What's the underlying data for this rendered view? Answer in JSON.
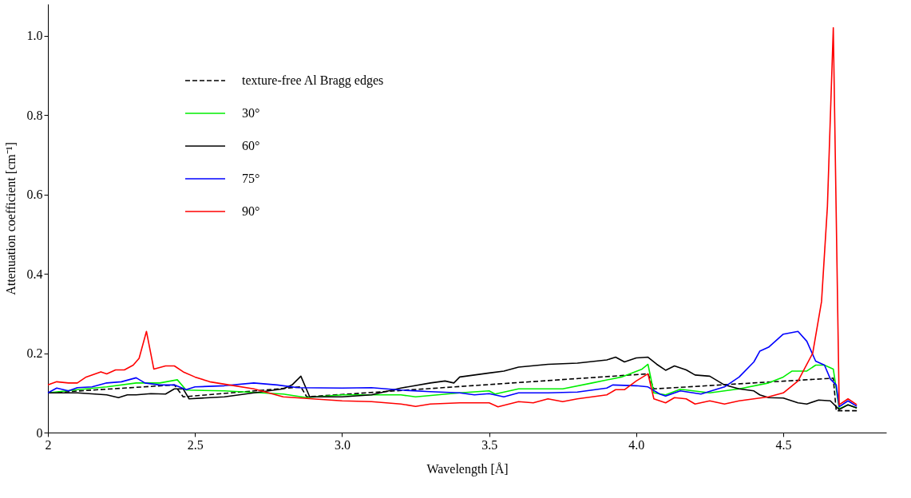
{
  "chart_data": {
    "type": "line",
    "xlabel": "Wavelength  [Å]",
    "ylabel": "Attenuation coefficient  [cm⁻¹]",
    "xlim": [
      2,
      4.85
    ],
    "ylim": [
      0,
      1.08
    ],
    "xticks": [
      2,
      2.5,
      {
        "value": 3,
        "label": "3.0"
      },
      3.5,
      {
        "value": 4,
        "label": "4.0"
      },
      4.5
    ],
    "yticks": [
      0,
      0.2,
      0.4,
      0.6,
      0.8,
      {
        "value": 1,
        "label": "1.0"
      }
    ],
    "grid": false,
    "legend": "top left",
    "marker": "none",
    "series": [
      {
        "name": "texture-free Al Bragg edges",
        "color": "#000000",
        "line_style": "dashed",
        "x": [
          2.0,
          2.43,
          2.46,
          2.86,
          2.88,
          4.04,
          4.06,
          4.67,
          4.68,
          4.75
        ],
        "values": [
          0.1,
          0.12,
          0.09,
          0.115,
          0.09,
          0.148,
          0.11,
          0.137,
          0.055,
          0.055
        ]
      },
      {
        "name": "30°",
        "color": "#00ee00",
        "line_style": "solid",
        "x": [
          2.0,
          2.1,
          2.2,
          2.3,
          2.38,
          2.44,
          2.47,
          2.6,
          2.8,
          2.88,
          3.0,
          3.2,
          3.25,
          3.4,
          3.5,
          3.52,
          3.6,
          3.75,
          3.85,
          3.95,
          4.02,
          4.04,
          4.06,
          4.1,
          4.15,
          4.25,
          4.35,
          4.45,
          4.5,
          4.53,
          4.58,
          4.61,
          4.64,
          4.67,
          4.69,
          4.72,
          4.75
        ],
        "values": [
          0.1,
          0.108,
          0.115,
          0.125,
          0.125,
          0.133,
          0.107,
          0.105,
          0.097,
          0.088,
          0.095,
          0.095,
          0.09,
          0.1,
          0.105,
          0.097,
          0.11,
          0.11,
          0.125,
          0.14,
          0.16,
          0.172,
          0.1,
          0.095,
          0.109,
          0.1,
          0.11,
          0.125,
          0.14,
          0.155,
          0.155,
          0.17,
          0.17,
          0.16,
          0.06,
          0.07,
          0.062
        ]
      },
      {
        "name": "60°",
        "color": "#000000",
        "line_style": "solid",
        "x": [
          2.0,
          2.1,
          2.2,
          2.24,
          2.27,
          2.3,
          2.35,
          2.4,
          2.43,
          2.46,
          2.48,
          2.6,
          2.7,
          2.8,
          2.83,
          2.86,
          2.89,
          3.0,
          3.1,
          3.2,
          3.3,
          3.35,
          3.38,
          3.4,
          3.5,
          3.55,
          3.6,
          3.7,
          3.8,
          3.9,
          3.93,
          3.96,
          4.0,
          4.04,
          4.07,
          4.1,
          4.13,
          4.17,
          4.2,
          4.25,
          4.3,
          4.35,
          4.4,
          4.42,
          4.45,
          4.5,
          4.55,
          4.58,
          4.62,
          4.66,
          4.69,
          4.72,
          4.75
        ],
        "values": [
          0.1,
          0.1,
          0.095,
          0.088,
          0.095,
          0.095,
          0.098,
          0.097,
          0.11,
          0.11,
          0.085,
          0.09,
          0.1,
          0.11,
          0.12,
          0.142,
          0.09,
          0.09,
          0.095,
          0.112,
          0.125,
          0.13,
          0.125,
          0.14,
          0.15,
          0.155,
          0.165,
          0.172,
          0.175,
          0.183,
          0.19,
          0.178,
          0.188,
          0.19,
          0.172,
          0.157,
          0.168,
          0.158,
          0.145,
          0.142,
          0.12,
          0.11,
          0.105,
          0.095,
          0.088,
          0.087,
          0.075,
          0.072,
          0.082,
          0.08,
          0.058,
          0.07,
          0.062
        ]
      },
      {
        "name": "75°",
        "color": "#0000ff",
        "line_style": "solid",
        "x": [
          2.0,
          2.03,
          2.07,
          2.1,
          2.15,
          2.2,
          2.25,
          2.3,
          2.33,
          2.38,
          2.43,
          2.47,
          2.5,
          2.6,
          2.7,
          2.78,
          2.85,
          3.0,
          3.1,
          3.2,
          3.3,
          3.4,
          3.45,
          3.5,
          3.55,
          3.6,
          3.7,
          3.8,
          3.9,
          3.92,
          4.0,
          4.04,
          4.08,
          4.1,
          4.15,
          4.22,
          4.3,
          4.35,
          4.4,
          4.42,
          4.45,
          4.5,
          4.55,
          4.58,
          4.61,
          4.64,
          4.66,
          4.68,
          4.69,
          4.72,
          4.75
        ],
        "values": [
          0.1,
          0.112,
          0.105,
          0.113,
          0.115,
          0.125,
          0.128,
          0.138,
          0.125,
          0.12,
          0.12,
          0.108,
          0.115,
          0.118,
          0.125,
          0.12,
          0.113,
          0.112,
          0.113,
          0.107,
          0.103,
          0.1,
          0.095,
          0.098,
          0.09,
          0.1,
          0.1,
          0.102,
          0.112,
          0.12,
          0.118,
          0.115,
          0.097,
          0.092,
          0.105,
          0.097,
          0.115,
          0.14,
          0.178,
          0.205,
          0.215,
          0.248,
          0.255,
          0.23,
          0.18,
          0.17,
          0.135,
          0.12,
          0.065,
          0.08,
          0.066
        ]
      },
      {
        "name": "90°",
        "color": "#ff0000",
        "line_style": "solid",
        "x": [
          2.0,
          2.03,
          2.07,
          2.1,
          2.13,
          2.18,
          2.2,
          2.23,
          2.26,
          2.29,
          2.31,
          2.335,
          2.36,
          2.4,
          2.43,
          2.46,
          2.5,
          2.55,
          2.6,
          2.7,
          2.8,
          2.9,
          3.0,
          3.1,
          3.2,
          3.25,
          3.3,
          3.4,
          3.5,
          3.53,
          3.6,
          3.65,
          3.7,
          3.75,
          3.8,
          3.85,
          3.9,
          3.93,
          3.96,
          4.0,
          4.04,
          4.06,
          4.1,
          4.13,
          4.17,
          4.2,
          4.25,
          4.3,
          4.35,
          4.4,
          4.45,
          4.5,
          4.55,
          4.6,
          4.63,
          4.65,
          4.67,
          4.69,
          4.72,
          4.75
        ],
        "values": [
          0.12,
          0.128,
          0.125,
          0.125,
          0.14,
          0.153,
          0.148,
          0.158,
          0.158,
          0.17,
          0.187,
          0.255,
          0.16,
          0.168,
          0.168,
          0.153,
          0.14,
          0.128,
          0.122,
          0.11,
          0.09,
          0.085,
          0.08,
          0.078,
          0.072,
          0.066,
          0.072,
          0.075,
          0.075,
          0.065,
          0.078,
          0.075,
          0.085,
          0.078,
          0.085,
          0.09,
          0.095,
          0.108,
          0.108,
          0.13,
          0.148,
          0.085,
          0.075,
          0.088,
          0.085,
          0.072,
          0.08,
          0.072,
          0.08,
          0.085,
          0.09,
          0.1,
          0.13,
          0.2,
          0.33,
          0.57,
          1.02,
          0.07,
          0.085,
          0.07
        ]
      }
    ]
  }
}
